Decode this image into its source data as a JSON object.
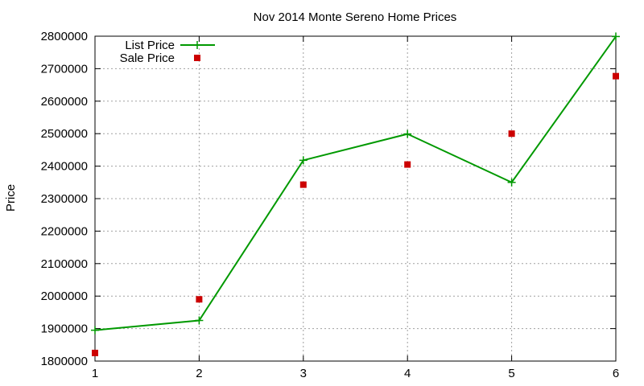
{
  "chart_data": {
    "type": "line",
    "title": "Nov 2014 Monte Sereno Home Prices",
    "xlabel": "",
    "ylabel": "Price",
    "x": [
      1,
      2,
      3,
      4,
      5,
      6
    ],
    "xlim": [
      1,
      6
    ],
    "ylim": [
      1800000,
      2800000
    ],
    "xticks": [
      1,
      2,
      3,
      4,
      5,
      6
    ],
    "yticks": [
      1800000,
      1900000,
      2000000,
      2100000,
      2200000,
      2300000,
      2400000,
      2500000,
      2600000,
      2700000,
      2800000
    ],
    "grid": true,
    "legend_position": "top-left",
    "series": [
      {
        "name": "List Price",
        "style": "line-with-plus-markers",
        "color": "#009900",
        "values": [
          1895000,
          1925000,
          2418000,
          2499000,
          2350000,
          2799000
        ]
      },
      {
        "name": "Sale Price",
        "style": "square-markers",
        "color": "#cc0000",
        "values": [
          1825000,
          1990000,
          2343000,
          2405000,
          2500000,
          2677000
        ]
      }
    ]
  }
}
